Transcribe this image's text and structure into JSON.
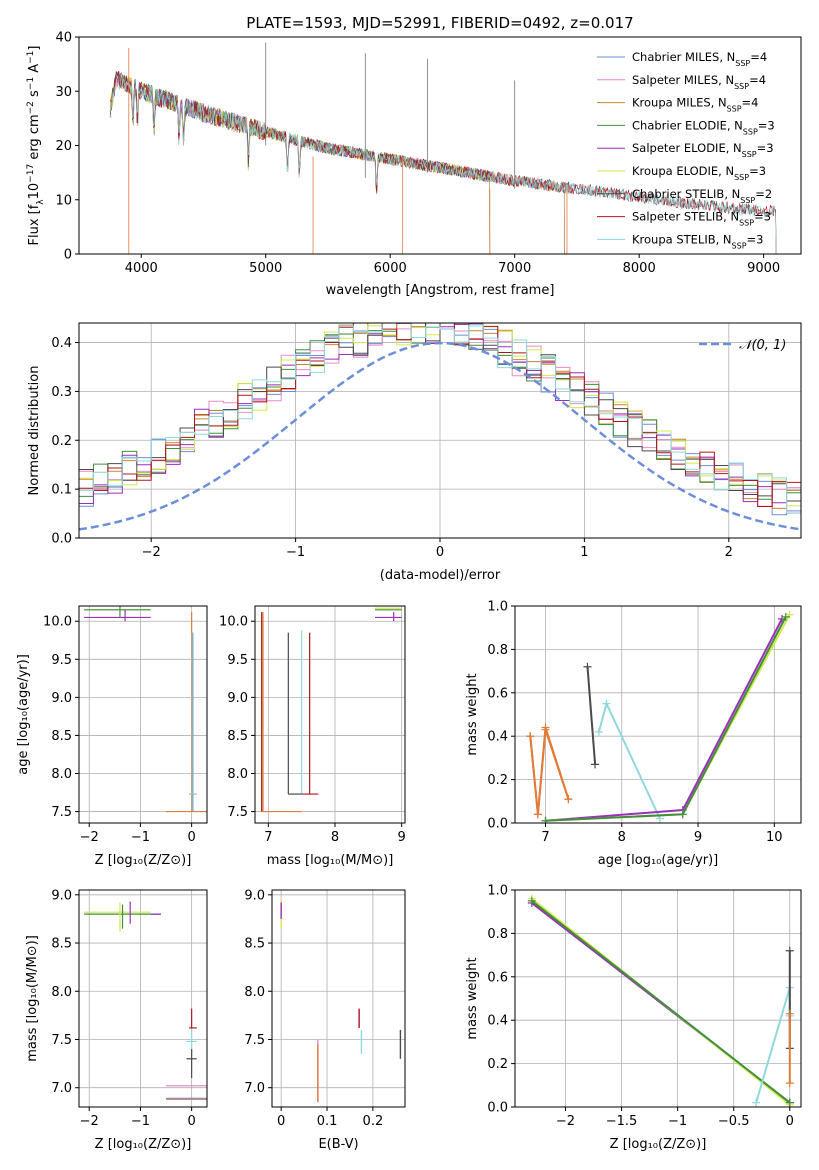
{
  "figure_title": "PLATE=1593, MJD=52991, FIBERID=0492, z=0.017",
  "colors": {
    "Chabrier MILES": "#6b8fd8",
    "Salpeter MILES": "#e68cc6",
    "Kroupa MILES": "#c8862a",
    "Chabrier ELODIE": "#3f8f3f",
    "Salpeter ELODIE": "#9b2fb8",
    "Kroupa ELODIE": "#d4e84a",
    "Chabrier STELIB": "#4a4a4a",
    "Salpeter STELIB": "#b0141e",
    "Kroupa STELIB": "#8fd8de",
    "fit_orange": "#e07b39",
    "gaussian": "#6b8fd8"
  },
  "chart_data": [
    {
      "id": "spectrum",
      "type": "line",
      "title": "PLATE=1593, MJD=52991, FIBERID=0492, z=0.017",
      "xlabel": "wavelength [Angstrom, rest frame]",
      "ylabel": "Flux [f_λ10^-17 erg cm^-2 s^-1 A^-1]",
      "xlim": [
        3500,
        9300
      ],
      "ylim": [
        0,
        40
      ],
      "xticks": [
        4000,
        5000,
        6000,
        7000,
        8000,
        9000
      ],
      "yticks": [
        0,
        10,
        20,
        30,
        40
      ],
      "legend_position": "top-right",
      "grid": false,
      "continuum": [
        [
          3750,
          33
        ],
        [
          4000,
          30
        ],
        [
          4500,
          26
        ],
        [
          5000,
          22.5
        ],
        [
          5500,
          19.5
        ],
        [
          6000,
          17.5
        ],
        [
          6500,
          15.5
        ],
        [
          7000,
          13.5
        ],
        [
          7500,
          12
        ],
        [
          8000,
          10.5
        ],
        [
          8500,
          9
        ],
        [
          9000,
          8
        ]
      ],
      "emission_lines": [
        [
          3900,
          38
        ],
        [
          5000,
          39
        ],
        [
          5800,
          37
        ],
        [
          6300,
          36
        ],
        [
          7000,
          32
        ],
        [
          7250,
          30
        ],
        [
          7900,
          12
        ]
      ],
      "series": [
        {
          "name": "Chabrier MILES",
          "nssp": "4",
          "range": [
            3750,
            7400
          ]
        },
        {
          "name": "Salpeter MILES",
          "nssp": "4",
          "range": [
            3750,
            7400
          ]
        },
        {
          "name": "Kroupa MILES",
          "nssp": "4",
          "range": [
            3750,
            7400
          ]
        },
        {
          "name": "Chabrier ELODIE",
          "nssp": "3",
          "range": [
            3750,
            6800
          ]
        },
        {
          "name": "Salpeter ELODIE",
          "nssp": "3",
          "range": [
            3750,
            6800
          ]
        },
        {
          "name": "Kroupa ELODIE",
          "nssp": "3",
          "range": [
            3750,
            6800
          ]
        },
        {
          "name": "Chabrier STELIB",
          "nssp": "2",
          "range": [
            3750,
            9100
          ]
        },
        {
          "name": "Salpeter STELIB",
          "nssp": "3",
          "range": [
            3750,
            9100
          ]
        },
        {
          "name": "Kroupa STELIB",
          "nssp": "3",
          "range": [
            3750,
            9100
          ]
        }
      ]
    },
    {
      "id": "residuals",
      "type": "line",
      "xlabel": "(data-model)/error",
      "ylabel": "Normed distribution",
      "xlim": [
        -2.5,
        2.5
      ],
      "ylim": [
        0,
        0.44
      ],
      "xticks": [
        -2,
        -1,
        0,
        1,
        2
      ],
      "yticks": [
        0.0,
        0.1,
        0.2,
        0.3,
        0.4
      ],
      "grid": true,
      "legend_position": "top-right",
      "gaussian_label": "𝒩(0, 1)",
      "bins": 50
    },
    {
      "id": "age_vs_Z",
      "type": "scatter",
      "xlabel": "Z [log10(Z/Z⊙)]",
      "ylabel": "age [log10(age/yr)]",
      "xlim": [
        -2.2,
        0.3
      ],
      "ylim": [
        7.35,
        10.2
      ],
      "xticks": [
        -2,
        -1,
        0
      ],
      "yticks": [
        7.5,
        8.0,
        8.5,
        9.0,
        9.5,
        10.0
      ],
      "grid": true
    },
    {
      "id": "age_vs_mass",
      "type": "scatter",
      "xlabel": "mass [log10(M/M⊙)]",
      "ylabel": "",
      "xlim": [
        6.8,
        9.05
      ],
      "ylim": [
        7.35,
        10.2
      ],
      "xticks": [
        7,
        8,
        9
      ],
      "yticks": [
        7.5,
        8.0,
        8.5,
        9.0,
        9.5,
        10.0
      ],
      "grid": true
    },
    {
      "id": "weight_vs_age",
      "type": "line",
      "xlabel": "age [log10(age/yr)]",
      "ylabel": "mass weight",
      "xlim": [
        6.6,
        10.35
      ],
      "ylim": [
        0,
        1
      ],
      "xticks": [
        7,
        8,
        9,
        10
      ],
      "yticks": [
        0.0,
        0.2,
        0.4,
        0.6,
        0.8,
        1.0
      ],
      "grid": true,
      "series": [
        {
          "name": "Chabrier MILES",
          "points": [
            [
              6.8,
              0.4
            ],
            [
              6.9,
              0.04
            ],
            [
              7.0,
              0.44
            ],
            [
              7.3,
              0.11
            ]
          ]
        },
        {
          "name": "Kroupa MILES",
          "points": [
            [
              6.8,
              0.4
            ],
            [
              6.9,
              0.04
            ],
            [
              7.0,
              0.43
            ],
            [
              7.3,
              0.11
            ]
          ]
        },
        {
          "name": "Chabrier STELIB",
          "points": [
            [
              7.55,
              0.72
            ],
            [
              7.65,
              0.27
            ]
          ]
        },
        {
          "name": "Kroupa STELIB",
          "points": [
            [
              7.7,
              0.42
            ],
            [
              7.8,
              0.55
            ],
            [
              8.5,
              0.02
            ]
          ]
        },
        {
          "name": "Salpeter ELODIE",
          "points": [
            [
              7.0,
              0.01
            ],
            [
              8.8,
              0.06
            ],
            [
              10.1,
              0.94
            ]
          ]
        },
        {
          "name": "Kroupa ELODIE",
          "points": [
            [
              7.0,
              0.01
            ],
            [
              8.8,
              0.04
            ],
            [
              10.2,
              0.96
            ]
          ]
        },
        {
          "name": "Chabrier ELODIE",
          "points": [
            [
              7.0,
              0.01
            ],
            [
              8.8,
              0.04
            ],
            [
              10.15,
              0.95
            ]
          ]
        }
      ]
    },
    {
      "id": "mass_vs_Z",
      "type": "scatter",
      "xlabel": "Z [log10(Z/Z⊙)]",
      "ylabel": "mass [log10(M/M⊙)]",
      "xlim": [
        -2.2,
        0.3
      ],
      "ylim": [
        6.8,
        9.05
      ],
      "xticks": [
        -2,
        -1,
        0
      ],
      "yticks": [
        7.0,
        7.5,
        8.0,
        8.5,
        9.0
      ],
      "grid": true
    },
    {
      "id": "mass_vs_ebv",
      "type": "scatter",
      "xlabel": "E(B-V)",
      "ylabel": "",
      "xlim": [
        -0.02,
        0.27
      ],
      "ylim": [
        6.8,
        9.05
      ],
      "xticks": [
        0.0,
        0.1,
        0.2
      ],
      "yticks": [
        7.0,
        7.5,
        8.0,
        8.5,
        9.0
      ],
      "grid": true
    },
    {
      "id": "weight_vs_Z",
      "type": "line",
      "xlabel": "Z [log10(Z/Z⊙)]",
      "ylabel": "mass weight",
      "xlim": [
        -2.45,
        0.1
      ],
      "ylim": [
        0,
        1
      ],
      "xticks": [
        -2.0,
        -1.5,
        -1.0,
        -0.5,
        0.0
      ],
      "yticks": [
        0.0,
        0.2,
        0.4,
        0.6,
        0.8,
        1.0
      ],
      "grid": true,
      "series": [
        {
          "name": "Salpeter ELODIE",
          "points": [
            [
              -2.3,
              0.94
            ],
            [
              0.0,
              0.02
            ]
          ]
        },
        {
          "name": "Kroupa ELODIE",
          "points": [
            [
              -2.3,
              0.96
            ],
            [
              0.0,
              0.01
            ]
          ]
        },
        {
          "name": "Chabrier ELODIE",
          "points": [
            [
              -2.3,
              0.95
            ],
            [
              0.0,
              0.02
            ]
          ]
        },
        {
          "name": "Kroupa STELIB",
          "points": [
            [
              -0.3,
              0.02
            ],
            [
              0.0,
              0.55
            ],
            [
              0.0,
              0.42
            ]
          ]
        },
        {
          "name": "Chabrier STELIB",
          "points": [
            [
              0.0,
              0.72
            ],
            [
              0.0,
              0.27
            ]
          ]
        },
        {
          "name": "Chabrier MILES",
          "points": [
            [
              0.0,
              0.43
            ],
            [
              0.0,
              0.11
            ]
          ]
        }
      ]
    }
  ]
}
